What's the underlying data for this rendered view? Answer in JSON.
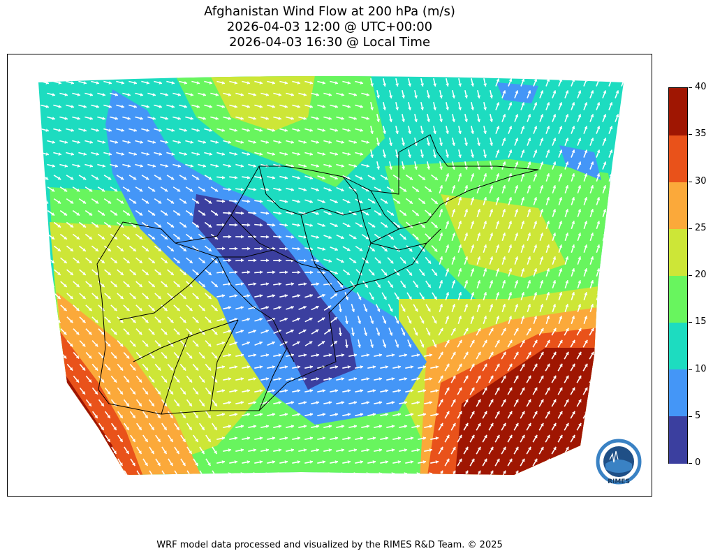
{
  "title": {
    "line1": "Afghanistan Wind Flow at 200 hPa (m/s)",
    "line2": "2026-04-03 12:00 @ UTC+00:00",
    "line3": "2026-04-03 16:30 @ Local Time"
  },
  "map": {
    "region": "Afghanistan",
    "variable": "wind speed and direction",
    "level": "200 hPa",
    "units": "m/s",
    "arrow_color": "#ffffff",
    "border_color": "#000000"
  },
  "colorbar": {
    "ticks": [
      "0",
      "5",
      "10",
      "15",
      "20",
      "25",
      "30",
      "35",
      "40"
    ],
    "bins": [
      {
        "min": 0,
        "max": 5,
        "color": "#3b3f9f"
      },
      {
        "min": 5,
        "max": 10,
        "color": "#4496f7"
      },
      {
        "min": 10,
        "max": 15,
        "color": "#1ddcc0"
      },
      {
        "min": 15,
        "max": 20,
        "color": "#68f55e"
      },
      {
        "min": 20,
        "max": 25,
        "color": "#cde637"
      },
      {
        "min": 25,
        "max": 30,
        "color": "#fba93a"
      },
      {
        "min": 30,
        "max": 35,
        "color": "#e9521a"
      },
      {
        "min": 35,
        "max": 40,
        "color": "#9f1602"
      }
    ]
  },
  "logo": {
    "name": "RIMES",
    "ring_color": "#3a82c4",
    "text_color": "#17395e"
  },
  "footer": "WRF model data processed and visualized by the RIMES R&D Team. © 2025"
}
